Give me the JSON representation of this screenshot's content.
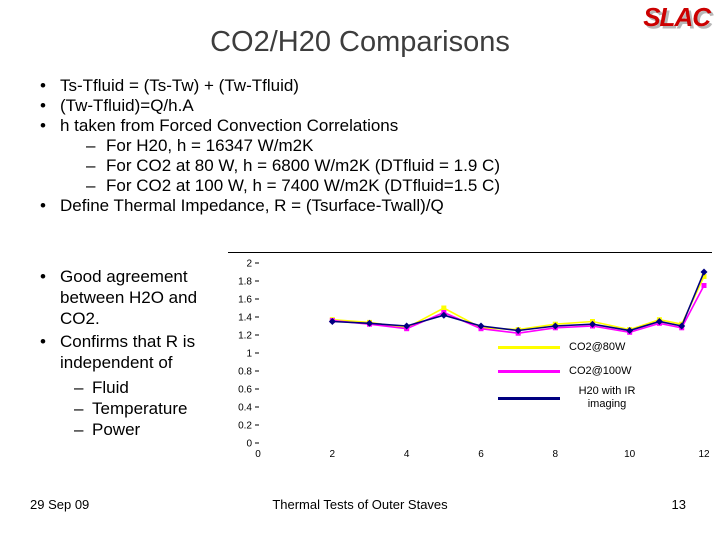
{
  "logo": {
    "text": "SLAC",
    "color": "#cc0000"
  },
  "title": "CO2/H20 Comparisons",
  "markers": {
    "bullet": "•",
    "dash": "–"
  },
  "slide_bullets": [
    {
      "level": 1,
      "text": "Ts-Tfluid = (Ts-Tw) + (Tw-Tfluid)"
    },
    {
      "level": 1,
      "text": "(Tw-Tfluid)=Q/h.A"
    },
    {
      "level": 1,
      "text": "h taken from Forced Convection Correlations"
    },
    {
      "level": 2,
      "text": "For H20, h = 16347 W/m2K"
    },
    {
      "level": 2,
      "text": "For CO2 at 80 W, h = 6800 W/m2K (DTfluid = 1.9 C)"
    },
    {
      "level": 2,
      "text": "For CO2 at 100 W, h = 7400 W/m2K (DTfluid=1.5 C)"
    },
    {
      "level": 1,
      "text": "Define Thermal Impedance, R = (Tsurface-Twall)/Q"
    }
  ],
  "left_bullets": [
    {
      "level": 1,
      "text": "Good agreement between H2O and CO2."
    },
    {
      "level": 1,
      "text": "Confirms that R is independent of"
    },
    {
      "level": 2,
      "text": "Fluid"
    },
    {
      "level": 2,
      "text": "Temperature"
    },
    {
      "level": 2,
      "text": "Power"
    }
  ],
  "footer": {
    "date": "29 Sep 09",
    "center": "Thermal Tests of Outer Staves",
    "page": "13"
  },
  "chart_data": {
    "type": "line",
    "title": "",
    "xlabel": "",
    "ylabel": "",
    "xlim": [
      0,
      12
    ],
    "ylim": [
      0,
      2
    ],
    "xticks": [
      "0",
      "2",
      "4",
      "6",
      "8",
      "10",
      "12"
    ],
    "yticks": [
      "0",
      "0.2",
      "0.4",
      "0.6",
      "0.8",
      "1",
      "1.2",
      "1.4",
      "1.6",
      "1.8",
      "2"
    ],
    "grid": false,
    "legend_position": "inside-right",
    "x": [
      2,
      3,
      4,
      5,
      6,
      7,
      8,
      9,
      10,
      10.8,
      11.4,
      12
    ],
    "series": [
      {
        "name": "CO2@80W",
        "color": "#ffff00",
        "marker": "square",
        "values": [
          1.37,
          1.34,
          1.28,
          1.5,
          1.28,
          1.26,
          1.32,
          1.35,
          1.26,
          1.37,
          1.32,
          1.85
        ]
      },
      {
        "name": "CO2@100W",
        "color": "#ff00ff",
        "marker": "square",
        "values": [
          1.36,
          1.32,
          1.27,
          1.45,
          1.27,
          1.22,
          1.28,
          1.3,
          1.23,
          1.33,
          1.28,
          1.75
        ]
      },
      {
        "name": "H20 with IR imaging",
        "color": "#000080",
        "marker": "diamond",
        "values": [
          1.35,
          1.33,
          1.3,
          1.42,
          1.3,
          1.25,
          1.3,
          1.32,
          1.25,
          1.35,
          1.3,
          1.9
        ]
      }
    ]
  }
}
